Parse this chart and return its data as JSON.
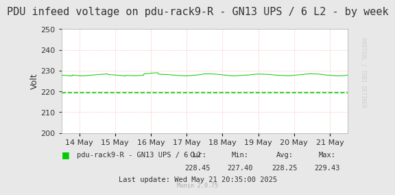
{
  "title": "PDU infeed voltage on pdu-rack9-R - GN13 UPS / 6 L2 - by week",
  "ylabel": "Volt",
  "background_color": "#e8e8e8",
  "plot_bg_color": "#ffffff",
  "ylim": [
    200,
    250
  ],
  "yticks": [
    200,
    210,
    220,
    230,
    240,
    250
  ],
  "x_tick_positions": [
    1,
    2,
    3,
    4,
    5,
    6,
    7,
    8
  ],
  "x_tick_labels": [
    "14 May",
    "15 May",
    "16 May",
    "17 May",
    "18 May",
    "19 May",
    "20 May",
    "21 May"
  ],
  "line_color": "#00cc00",
  "line_value": 228.0,
  "dashed_line_value": 219.3,
  "dashed_line_color": "#00cc00",
  "legend_label": "pdu-rack9-R - GN13 UPS / 6 L2",
  "legend_color": "#00cc00",
  "cur_val": "228.45",
  "min_val": "227.40",
  "avg_val": "228.25",
  "max_val": "229.43",
  "last_update": "Last update: Wed May 21 20:35:00 2025",
  "munin_version": "Munin 2.0.75",
  "watermark": "RRDTOOL / TOBI OETIKER",
  "title_fontsize": 11,
  "axis_fontsize": 9,
  "tick_fontsize": 8,
  "small_fontsize": 7.5
}
